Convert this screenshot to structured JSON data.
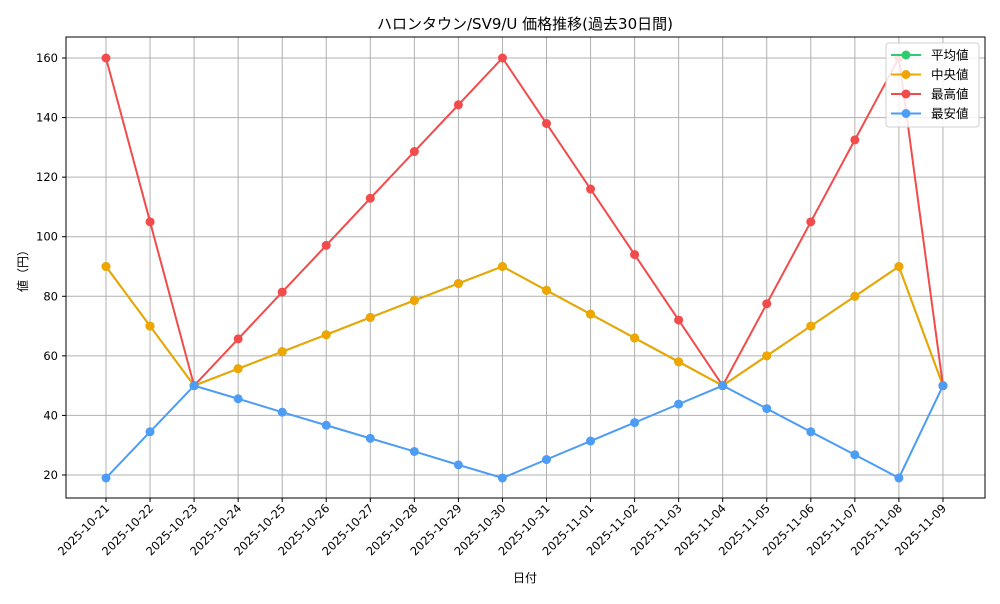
{
  "chart_data": {
    "type": "line",
    "title": "ハロンタウン/SV9/U 価格推移(過去30日間)",
    "xlabel": "日付",
    "ylabel": "値（円）",
    "ylim": [
      12,
      167
    ],
    "yticks": [
      20,
      40,
      60,
      80,
      100,
      120,
      140,
      160
    ],
    "grid": true,
    "legend_position": "upper right",
    "categories": [
      "2025-10-21",
      "2025-10-22",
      "2025-10-23",
      "2025-10-24",
      "2025-10-25",
      "2025-10-26",
      "2025-10-27",
      "2025-10-28",
      "2025-10-29",
      "2025-10-30",
      "2025-10-31",
      "2025-11-01",
      "2025-11-02",
      "2025-11-03",
      "2025-11-04",
      "2025-11-05",
      "2025-11-06",
      "2025-11-07",
      "2025-11-08",
      "2025-11-09"
    ],
    "series": [
      {
        "name": "平均値",
        "color": "#2ecc71",
        "values": [
          90,
          70,
          50,
          55.7,
          61.4,
          67.1,
          72.9,
          78.6,
          84.3,
          90,
          82,
          74,
          66,
          58,
          50,
          60,
          70,
          80,
          90,
          50
        ]
      },
      {
        "name": "中央値",
        "color": "#f0a500",
        "values": [
          90,
          70,
          50,
          55.7,
          61.4,
          67.1,
          72.9,
          78.6,
          84.3,
          90,
          82,
          74,
          66,
          58,
          50,
          60,
          70,
          80,
          90,
          50
        ]
      },
      {
        "name": "最高値",
        "color": "#f24b4b",
        "values": [
          160,
          105,
          50,
          65.7,
          81.4,
          97.1,
          112.9,
          128.6,
          144.3,
          160,
          138,
          116,
          94,
          72,
          50,
          77.5,
          105,
          132.5,
          160,
          50
        ]
      },
      {
        "name": "最安値",
        "color": "#4d9cf5",
        "values": [
          19,
          34.5,
          50,
          45.6,
          41.1,
          36.7,
          32.3,
          27.9,
          23.4,
          19,
          25.2,
          31.4,
          37.6,
          43.8,
          50,
          42.3,
          34.5,
          26.8,
          19,
          50
        ]
      }
    ]
  }
}
